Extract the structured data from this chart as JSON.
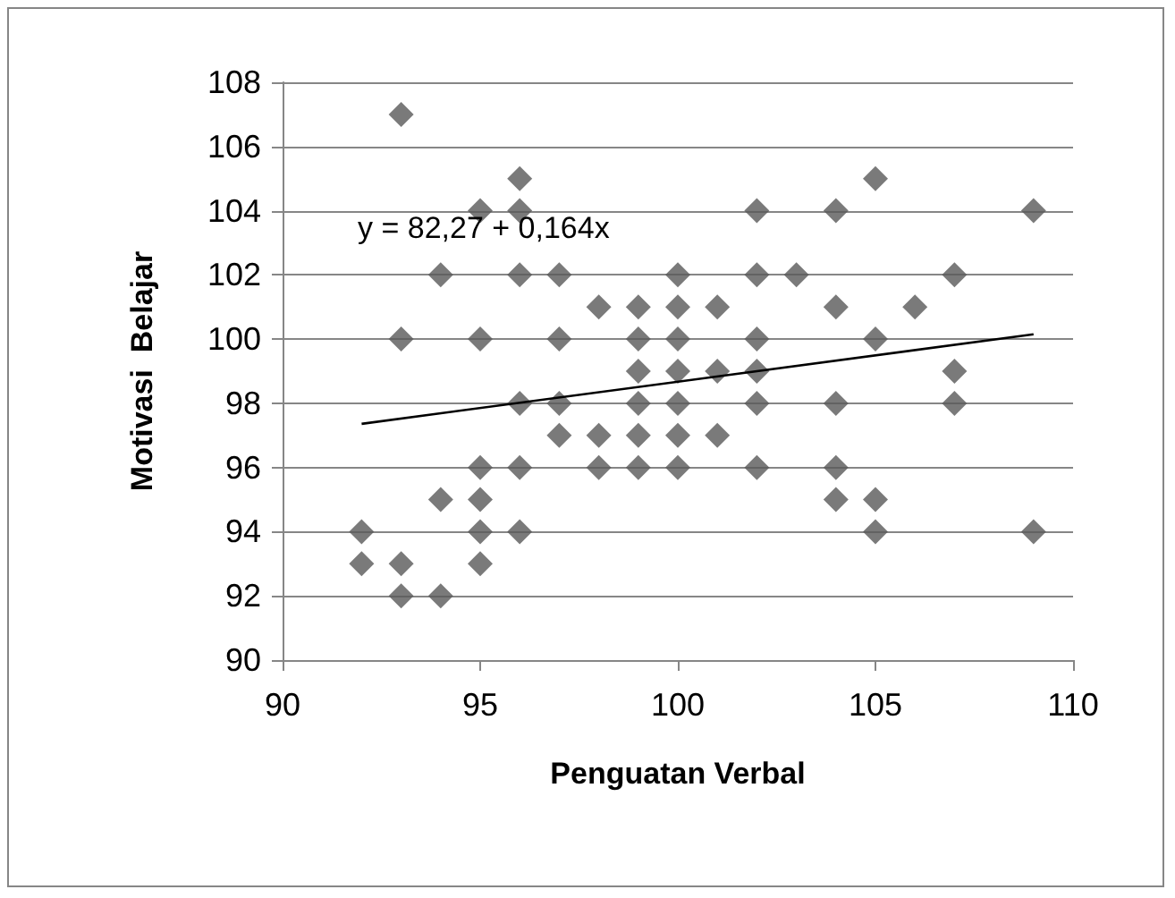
{
  "chart_data": {
    "type": "scatter",
    "xlabel": "Penguatan Verbal",
    "ylabel": "Motivasi  Belajar",
    "annotations": [
      "y = 82,27 + 0,164x"
    ],
    "series": [
      {
        "color": "#595959",
        "x": [
          92,
          92,
          93,
          93,
          93,
          93,
          94,
          94,
          94,
          95,
          95,
          95,
          95,
          95,
          95,
          96,
          96,
          96,
          96,
          96,
          96,
          97,
          97,
          97,
          97,
          98,
          98,
          98,
          99,
          99,
          99,
          99,
          99,
          99,
          100,
          100,
          100,
          100,
          100,
          100,
          100,
          101,
          101,
          101,
          102,
          102,
          102,
          102,
          102,
          102,
          103,
          104,
          104,
          104,
          104,
          104,
          105,
          105,
          105,
          105,
          106,
          107,
          107,
          107,
          109,
          109
        ],
        "values": [
          94,
          93,
          107,
          100,
          93,
          92,
          102,
          95,
          92,
          104,
          100,
          96,
          95,
          94,
          93,
          105,
          104,
          102,
          98,
          96,
          94,
          102,
          100,
          98,
          97,
          101,
          97,
          96,
          101,
          100,
          99,
          98,
          97,
          96,
          102,
          101,
          100,
          99,
          98,
          97,
          96,
          101,
          99,
          97,
          104,
          102,
          100,
          99,
          98,
          96,
          102,
          104,
          101,
          98,
          96,
          95,
          105,
          100,
          95,
          94,
          101,
          102,
          99,
          98,
          104,
          94
        ]
      },
      {
        "type": "line",
        "color": "#000000",
        "marker": "none",
        "x": [
          92,
          109
        ],
        "values": [
          97.36,
          100.15
        ]
      }
    ],
    "marker": "diamond",
    "grid": "y",
    "xlim": [
      90,
      110
    ],
    "xticks": [
      90,
      95,
      100,
      105,
      110
    ],
    "ylim": [
      90,
      108
    ],
    "yticks": [
      90,
      92,
      94,
      96,
      98,
      100,
      102,
      104,
      106,
      108
    ]
  }
}
